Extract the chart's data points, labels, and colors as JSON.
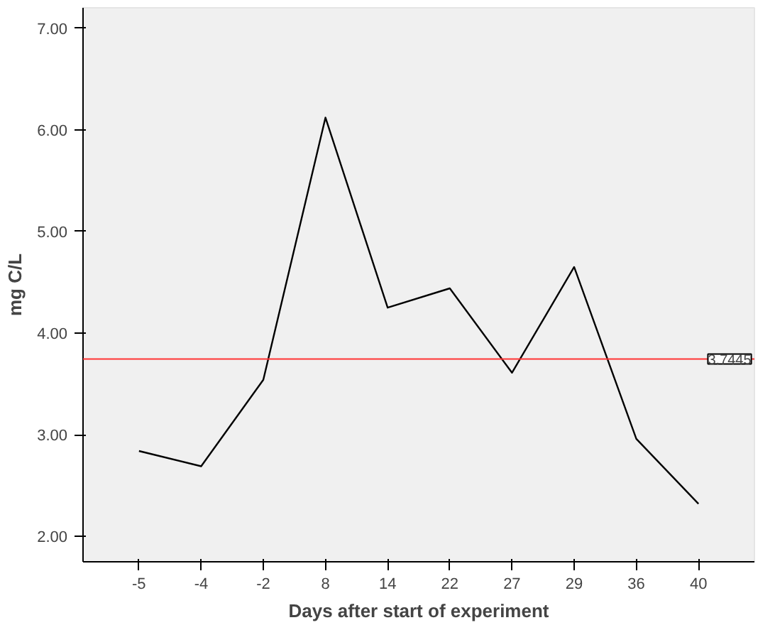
{
  "chart_data": {
    "type": "line",
    "xlabel": "Days after start of experiment",
    "ylabel": "mg C/L",
    "categories": [
      "-5",
      "-4",
      "-2",
      "8",
      "14",
      "22",
      "27",
      "29",
      "36",
      "40"
    ],
    "series": [
      {
        "color": "#000000",
        "values": [
          2.84,
          2.69,
          3.54,
          6.12,
          4.25,
          4.44,
          3.61,
          4.65,
          2.96,
          2.32
        ]
      }
    ],
    "ylim": [
      1.75,
      7.2
    ],
    "yticks": [
      {
        "value": 2,
        "label": "2.00"
      },
      {
        "value": 3,
        "label": "3.00"
      },
      {
        "value": 4,
        "label": "4.00"
      },
      {
        "value": 5,
        "label": "5.00"
      },
      {
        "value": 6,
        "label": "6.00"
      },
      {
        "value": 7,
        "label": "7.00"
      }
    ],
    "ref_lines": [
      {
        "axis": "y",
        "value": 3.7445,
        "label": "3.7445",
        "color": "#ff3333"
      }
    ],
    "grid": false,
    "marker": "none",
    "line_style": "solid"
  }
}
